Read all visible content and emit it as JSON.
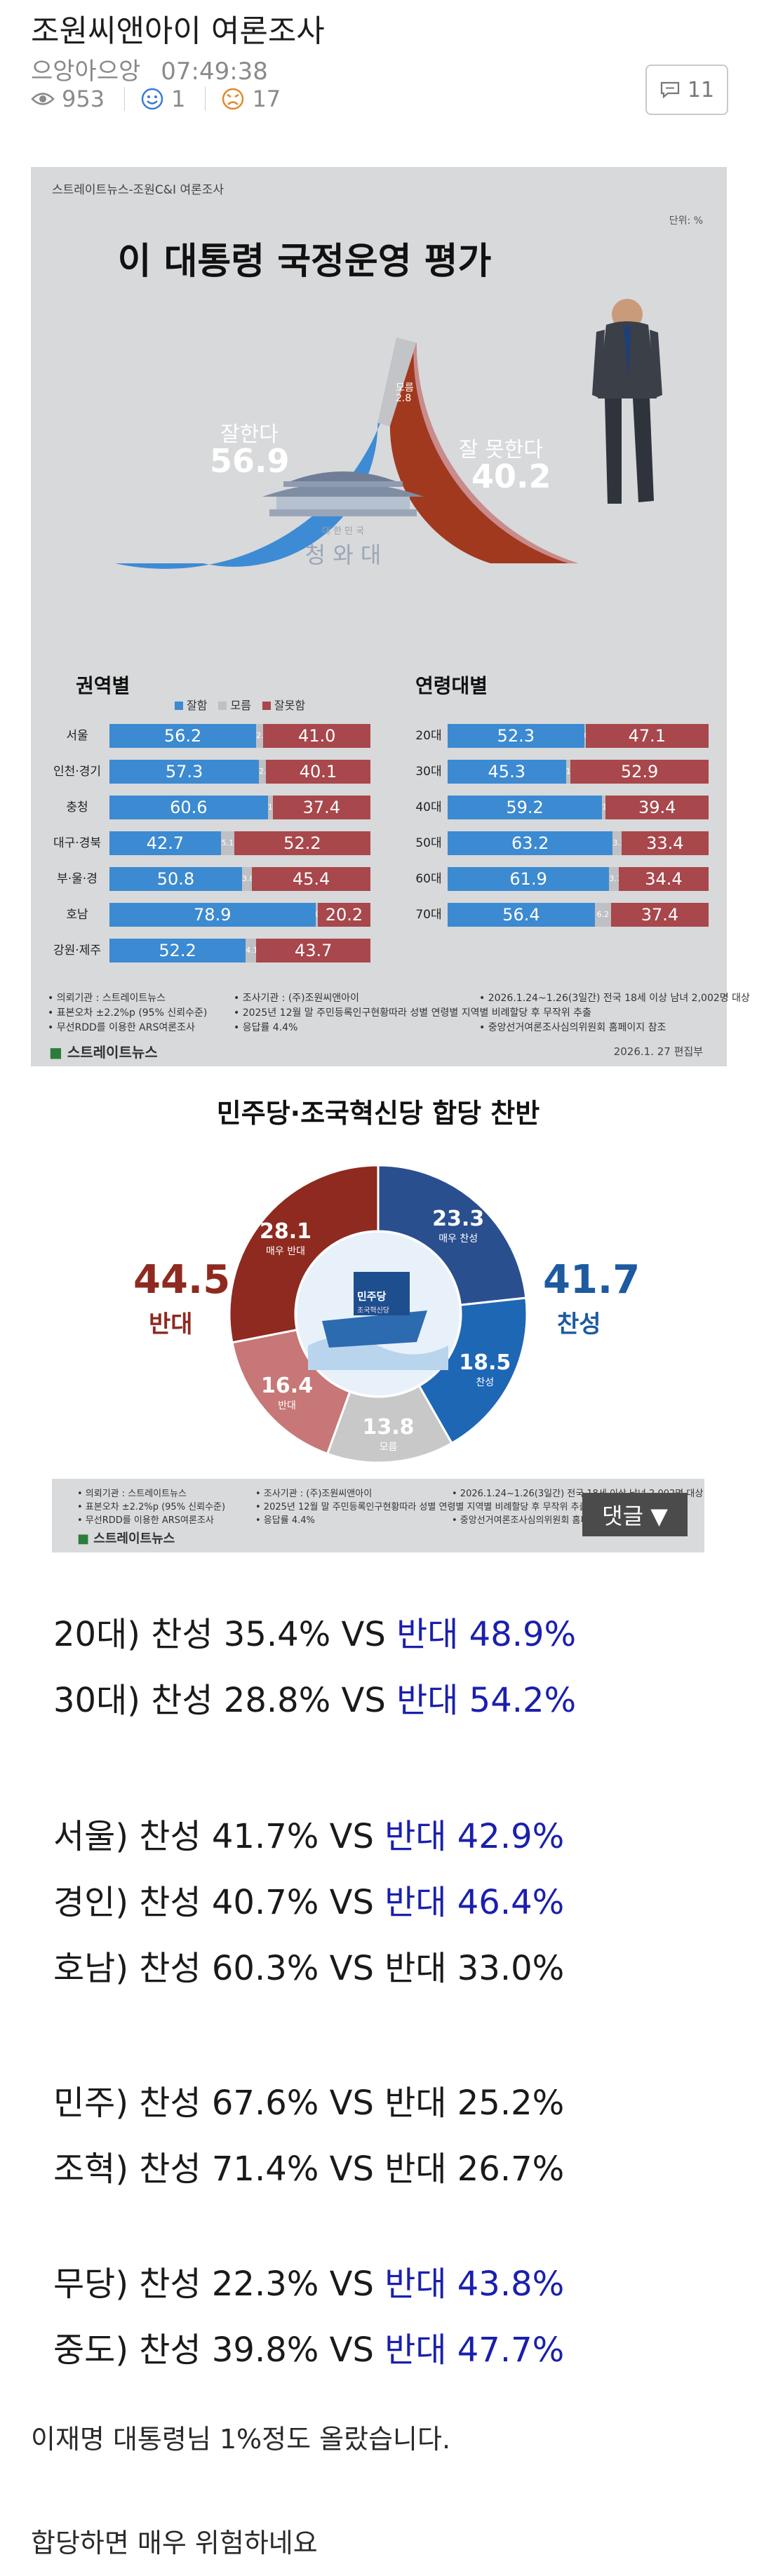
{
  "post": {
    "title": "조원씨앤아이 여론조사",
    "author": "으앙아으앙",
    "time": "07:49:38",
    "views": "953",
    "likes": "1",
    "dislikes": "17",
    "comments": "11"
  },
  "poll1": {
    "source": "스트레이트뉴스-조원C&I 여론조사",
    "unit": "단위: %",
    "title": "이 대통령 국정운영 평가",
    "good_label": "잘한다",
    "good_value": "56.9",
    "dk_label": "모름",
    "dk_value": "2.8",
    "bad_label": "잘 못한다",
    "bad_value": "40.2",
    "emblem_small": "대 한 민 국",
    "emblem_big": "청  와  대",
    "region_title": "권역별",
    "age_title": "연령대별",
    "legend": [
      "잘함",
      "모름",
      "잘못함"
    ],
    "regions": [
      {
        "label": "서울",
        "good": 56.2,
        "dk": 2.8,
        "bad": 41.0
      },
      {
        "label": "인천·경기",
        "good": 57.3,
        "dk": 2.6,
        "bad": 40.1
      },
      {
        "label": "충청",
        "good": 60.6,
        "dk": 1.9,
        "bad": 37.4
      },
      {
        "label": "대구·경북",
        "good": 42.7,
        "dk": 5.1,
        "bad": 52.2
      },
      {
        "label": "부·울·경",
        "good": 50.8,
        "dk": 3.8,
        "bad": 45.4
      },
      {
        "label": "호남",
        "good": 78.9,
        "dk": 0.9,
        "bad": 20.2
      },
      {
        "label": "강원·제주",
        "good": 52.2,
        "dk": 4.1,
        "bad": 43.7
      }
    ],
    "ages": [
      {
        "label": "20대",
        "good": 52.3,
        "dk": 0.6,
        "bad": 47.1
      },
      {
        "label": "30대",
        "good": 45.3,
        "dk": 1.8,
        "bad": 52.9
      },
      {
        "label": "40대",
        "good": 59.2,
        "dk": 1.4,
        "bad": 39.4
      },
      {
        "label": "50대",
        "good": 63.2,
        "dk": 3.3,
        "bad": 33.4
      },
      {
        "label": "60대",
        "good": 61.9,
        "dk": 3.7,
        "bad": 34.4
      },
      {
        "label": "70대",
        "good": 56.4,
        "dk": 6.2,
        "bad": 37.4
      }
    ],
    "footer_col1": [
      "• 의뢰기관 : 스트레이트뉴스",
      "• 표본오차 ±2.2%p (95% 신뢰수준)",
      "• 무선RDD를 이용한 ARS여론조사"
    ],
    "footer_col2": [
      "• 조사기관 : (주)조원씨앤아이",
      "• 2025년 12월 말 주민등록인구현황따라 성별 연령별 지역별 비례할당 후 무작위 추출",
      "• 응답률 4.4%"
    ],
    "footer_col3": [
      "• 2026.1.24~1.26(3일간) 전국 18세 이상 남녀 2,002명 대상",
      "• 중앙선거여론조사심의위원회 홈페이지 참조"
    ],
    "brand": "스트레이트뉴스",
    "date": "2026.1. 27  편집부"
  },
  "poll2": {
    "title": "민주당·조국혁신당 합당 찬반",
    "left_total": "44.5",
    "left_label": "반대",
    "right_total": "41.7",
    "right_label": "찬성",
    "slices": [
      {
        "value": "23.3",
        "label": "매우 찬성",
        "color": "#2a4f8f"
      },
      {
        "value": "18.5",
        "label": "찬성",
        "color": "#1d67b5"
      },
      {
        "value": "13.8",
        "label": "모름",
        "color": "#c8c8c8"
      },
      {
        "value": "16.4",
        "label": "반대",
        "color": "#c77777"
      },
      {
        "value": "28.1",
        "label": "매우 반대",
        "color": "#8e2a1f"
      }
    ],
    "ship_text1": "민주당",
    "ship_text2": "조국혁신당",
    "footer_col1": [
      "• 의뢰기관 : 스트레이트뉴스",
      "• 표본오차 ±2.2%p (95% 신뢰수준)",
      "• 무선RDD를 이용한 ARS여론조사"
    ],
    "footer_col2": [
      "• 조사기관 : (주)조원씨앤아이",
      "• 2025년 12월 말 주민등록인구현황따라 성별 연령별 지역별 비례할당 후 무작위 추출",
      "• 응답률 4.4%"
    ],
    "footer_col3": [
      "• 2026.1.24~1.26(3일간) 전국 18세 이상 남녀 2,002명 대상",
      "• 중앙선거여론조사심의위원회 홈페이지 참조"
    ],
    "brand": "스트레이트뉴스",
    "reply_button": "댓글 ▼"
  },
  "lines": [
    {
      "prefix": "20대) 찬성 35.4% VS ",
      "suffix": "반대 48.9%",
      "blue": true
    },
    {
      "prefix": "30대) 찬성 28.8% VS ",
      "suffix": "반대 54.2%",
      "blue": true
    },
    {
      "prefix": "서울) 찬성 41.7% VS ",
      "suffix": "반대 42.9%",
      "blue": true
    },
    {
      "prefix": "경인) 찬성 40.7% VS ",
      "suffix": "반대 46.4%",
      "blue": true
    },
    {
      "prefix": "호남) 찬성 60.3% VS ",
      "suffix": "반대 33.0%",
      "blue": false
    },
    {
      "prefix": "민주) 찬성 67.6% VS ",
      "suffix": "반대 25.2%",
      "blue": false
    },
    {
      "prefix": "조혁) 찬성 71.4% VS ",
      "suffix": "반대 26.7%",
      "blue": false
    },
    {
      "prefix": "무당) 찬성 22.3% VS ",
      "suffix": "반대 43.8%",
      "blue": true
    },
    {
      "prefix": "중도) 찬성 39.8% VS ",
      "suffix": "반대 47.7%",
      "blue": true
    }
  ],
  "notes": [
    "이재명 대통령님 1%정도 올랐습니다.",
    "합당하면 매우 위험하네요"
  ],
  "chart_data": [
    {
      "type": "pie",
      "title": "이 대통령 국정운영 평가",
      "unit": "%",
      "categories": [
        "잘한다",
        "모름",
        "잘 못한다"
      ],
      "values": [
        56.9,
        2.8,
        40.2
      ]
    },
    {
      "type": "bar",
      "title": "권역별",
      "categories": [
        "서울",
        "인천·경기",
        "충청",
        "대구·경북",
        "부·울·경",
        "호남",
        "강원·제주"
      ],
      "series": [
        {
          "name": "잘함",
          "values": [
            56.2,
            57.3,
            60.6,
            42.7,
            50.8,
            78.9,
            52.2
          ]
        },
        {
          "name": "모름",
          "values": [
            2.8,
            2.6,
            1.9,
            5.1,
            3.8,
            0.9,
            4.1
          ]
        },
        {
          "name": "잘못함",
          "values": [
            41.0,
            40.1,
            37.4,
            52.2,
            45.4,
            20.2,
            43.7
          ]
        }
      ]
    },
    {
      "type": "bar",
      "title": "연령대별",
      "categories": [
        "20대",
        "30대",
        "40대",
        "50대",
        "60대",
        "70대"
      ],
      "series": [
        {
          "name": "잘함",
          "values": [
            52.3,
            45.3,
            59.2,
            63.2,
            61.9,
            56.4
          ]
        },
        {
          "name": "모름",
          "values": [
            0.6,
            1.8,
            1.4,
            3.3,
            3.7,
            6.2
          ]
        },
        {
          "name": "잘못함",
          "values": [
            47.1,
            52.9,
            39.4,
            33.4,
            34.4,
            37.4
          ]
        }
      ]
    },
    {
      "type": "pie",
      "title": "민주당·조국혁신당 합당 찬반",
      "categories": [
        "매우 찬성",
        "찬성",
        "모름",
        "반대",
        "매우 반대"
      ],
      "values": [
        23.3,
        18.5,
        13.8,
        16.4,
        28.1
      ]
    }
  ]
}
